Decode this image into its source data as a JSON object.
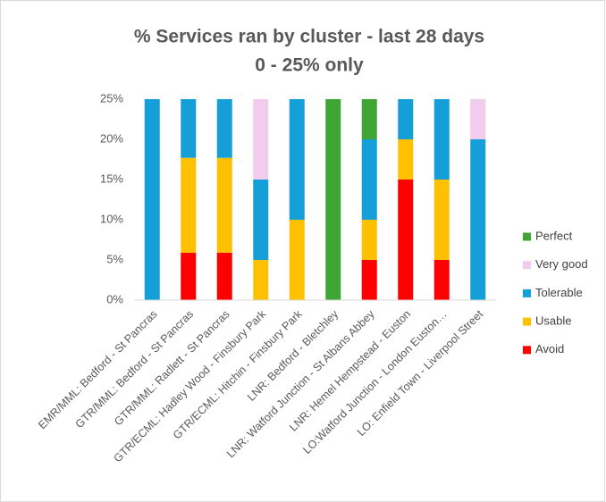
{
  "chart_data": {
    "type": "stacked-bar",
    "title": "% Services ran by cluster - last 28 days",
    "subtitle": "0 - 25% only",
    "categories": [
      "EMR/MML: Bedford - St Pancras",
      "GTR/MML: Bedford - St Pancras",
      "GTR/MML: Radlett - St Pancras",
      "GTR/ECML: Hadley Wood - Finsbury Park",
      "GTR/ECML: Hitchin - Finsbury Park",
      "LNR: Bedford - Bletchley",
      "LNR: Watford Junction - St Albans Abbey",
      "LNR: Hemel Hempstead - Euston",
      "LO:Watford Junction - London Euston…",
      "LO: Enfield Town - Liverpool Street"
    ],
    "series": [
      {
        "name": "Avoid",
        "color": "#ff0000",
        "values": [
          0,
          5.9,
          5.9,
          0,
          0,
          0,
          5,
          15,
          5,
          0
        ]
      },
      {
        "name": "Usable",
        "color": "#ffc000",
        "values": [
          0,
          11.8,
          11.8,
          5,
          10,
          0,
          5,
          5,
          10,
          0
        ]
      },
      {
        "name": "Tolerable",
        "color": "#149fd8",
        "values": [
          25,
          7.3,
          7.3,
          10,
          15,
          0,
          10,
          5,
          10,
          20
        ]
      },
      {
        "name": "Very good",
        "color": "#f2ccec",
        "values": [
          0,
          0,
          0,
          10,
          0,
          0,
          0,
          0,
          0,
          5
        ]
      },
      {
        "name": "Perfect",
        "color": "#3fa535",
        "values": [
          0,
          0,
          0,
          0,
          0,
          25,
          5,
          0,
          0,
          0
        ]
      }
    ],
    "ylim": [
      0,
      25
    ],
    "yticks": [
      {
        "value": 0,
        "label": "0%"
      },
      {
        "value": 5,
        "label": "5%"
      },
      {
        "value": 10,
        "label": "10%"
      },
      {
        "value": 15,
        "label": "15%"
      },
      {
        "value": 20,
        "label": "20%"
      },
      {
        "value": 25,
        "label": "25%"
      }
    ],
    "grid": false,
    "legend": "right"
  }
}
